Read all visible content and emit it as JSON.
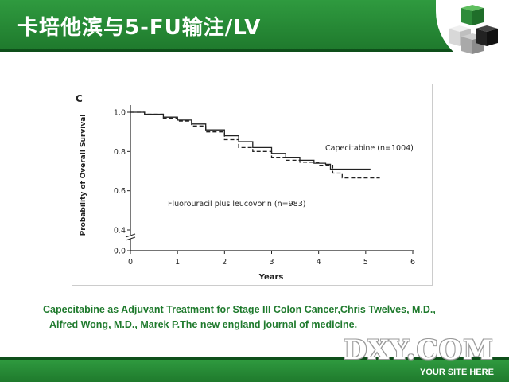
{
  "slide": {
    "title": "卡培他滨与5-FU输注/LV",
    "caption_line1": "Capecitabine as Adjuvant Treatment for Stage III Colon Cancer,Chris Twelves, M.D.,",
    "caption_line2": "Alfred Wong, M.D., Marek P.The new england journal of medicine.",
    "watermark": "DXY.COM",
    "site_text": "YOUR SITE HERE",
    "colors": {
      "green": "#1f7a2d",
      "dark_green": "#0e4f1a"
    }
  },
  "chart_data": {
    "type": "line",
    "panel_label": "C",
    "xlabel": "Years",
    "ylabel": "Probability of Overall Survival",
    "xlim": [
      0,
      6
    ],
    "ylim": [
      0,
      1.0
    ],
    "y_axis_break": true,
    "x_ticks": [
      "0",
      "1",
      "2",
      "3",
      "4",
      "5",
      "6"
    ],
    "y_ticks": [
      "0.0",
      "0.4",
      "0.6",
      "0.8",
      "1.0"
    ],
    "grid": false,
    "series": [
      {
        "name": "Capecitabine (n=1004)",
        "style": "solid",
        "x": [
          0,
          0.3,
          0.7,
          1.0,
          1.3,
          1.6,
          2.0,
          2.3,
          2.6,
          3.0,
          3.3,
          3.6,
          3.9,
          4.15,
          4.25,
          4.6,
          5.1
        ],
        "y": [
          1.0,
          0.99,
          0.975,
          0.96,
          0.94,
          0.91,
          0.88,
          0.85,
          0.82,
          0.79,
          0.77,
          0.755,
          0.74,
          0.735,
          0.71,
          0.71,
          0.71
        ]
      },
      {
        "name": "Fluorouracil plus leucovorin (n=983)",
        "style": "dashed",
        "x": [
          0,
          0.3,
          0.7,
          1.0,
          1.3,
          1.6,
          2.0,
          2.3,
          2.6,
          3.0,
          3.3,
          3.6,
          4.0,
          4.3,
          4.5,
          5.3
        ],
        "y": [
          1.0,
          0.99,
          0.97,
          0.955,
          0.93,
          0.9,
          0.86,
          0.82,
          0.8,
          0.77,
          0.755,
          0.745,
          0.73,
          0.69,
          0.665,
          0.665
        ]
      }
    ]
  }
}
